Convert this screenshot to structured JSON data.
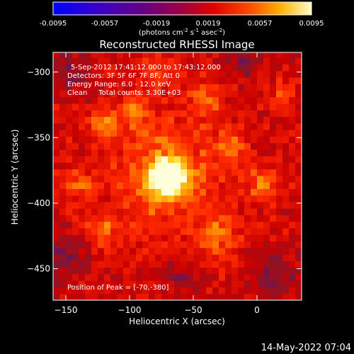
{
  "footer": {
    "timestamp": "14-May-2022 07:04"
  },
  "chart_data": {
    "type": "heatmap",
    "title": "Reconstructed RHESSI Image",
    "xlabel": "Heliocentric X (arcsec)",
    "ylabel": "Heliocentric Y (arcsec)",
    "xlim": [
      -160,
      35
    ],
    "ylim": [
      -474,
      -285
    ],
    "xticks": [
      -150,
      -100,
      -50,
      0
    ],
    "yticks": [
      -300,
      -350,
      -400,
      -450
    ],
    "colorbar": {
      "ticks": [
        "-0.0095",
        "-0.0057",
        "-0.0019",
        "0.0019",
        "0.0057",
        "0.0095"
      ],
      "units_prefix": "(photons cm",
      "units_sup1": "-2",
      "units_mid1": " s",
      "units_sup2": "-1",
      "units_mid2": " asec",
      "units_sup3": "-2",
      "units_suffix": ")",
      "vmin": -0.0095,
      "vmax": 0.0095
    },
    "annotations": [
      "5-Sep-2012 17:41:12.000 to 17:43:12.000",
      "Detectors: 3F 5F 6F 7F 8F, Att 0",
      "Energy Range: 6.0 - 12.0 keV",
      "Clean     Total counts: 3.30E+03"
    ],
    "peak_label": "Position of Peak = [-70,-380]",
    "peak": {
      "x": -70,
      "y": -380,
      "value": 0.0095
    },
    "features": [
      {
        "kind": "source",
        "x": -70,
        "y": -380,
        "sigma": 9,
        "amp": 0.0095
      },
      {
        "kind": "halo",
        "x": -72,
        "y": -378,
        "sigma": 30,
        "amp": 0.0035
      },
      {
        "kind": "blob",
        "x": -120,
        "y": -340,
        "sigma": 9,
        "amp": 0.0035
      },
      {
        "kind": "blob",
        "x": -95,
        "y": -330,
        "sigma": 8,
        "amp": 0.003
      },
      {
        "kind": "blob",
        "x": -40,
        "y": -320,
        "sigma": 9,
        "amp": 0.0028
      },
      {
        "kind": "blob",
        "x": -20,
        "y": -355,
        "sigma": 8,
        "amp": 0.003
      },
      {
        "kind": "blob",
        "x": 5,
        "y": -385,
        "sigma": 10,
        "amp": 0.0028
      },
      {
        "kind": "blob",
        "x": -30,
        "y": -425,
        "sigma": 12,
        "amp": 0.003
      },
      {
        "kind": "blob",
        "x": -120,
        "y": -420,
        "sigma": 10,
        "amp": 0.0026
      },
      {
        "kind": "blob",
        "x": -140,
        "y": -385,
        "sigma": 9,
        "amp": 0.0024
      },
      {
        "kind": "blob",
        "x": -80,
        "y": -300,
        "sigma": 10,
        "amp": 0.0022
      },
      {
        "kind": "blob",
        "x": 20,
        "y": -320,
        "sigma": 8,
        "amp": 0.0024
      },
      {
        "kind": "neg",
        "x": -145,
        "y": -300,
        "sigma": 12,
        "amp": -0.0022
      },
      {
        "kind": "neg",
        "x": -150,
        "y": -440,
        "sigma": 12,
        "amp": -0.0024
      },
      {
        "kind": "neg",
        "x": 15,
        "y": -455,
        "sigma": 14,
        "amp": -0.0024
      },
      {
        "kind": "neg",
        "x": -10,
        "y": -290,
        "sigma": 10,
        "amp": -0.002
      },
      {
        "kind": "neg",
        "x": -60,
        "y": -455,
        "sigma": 10,
        "amp": -0.0018
      }
    ]
  }
}
